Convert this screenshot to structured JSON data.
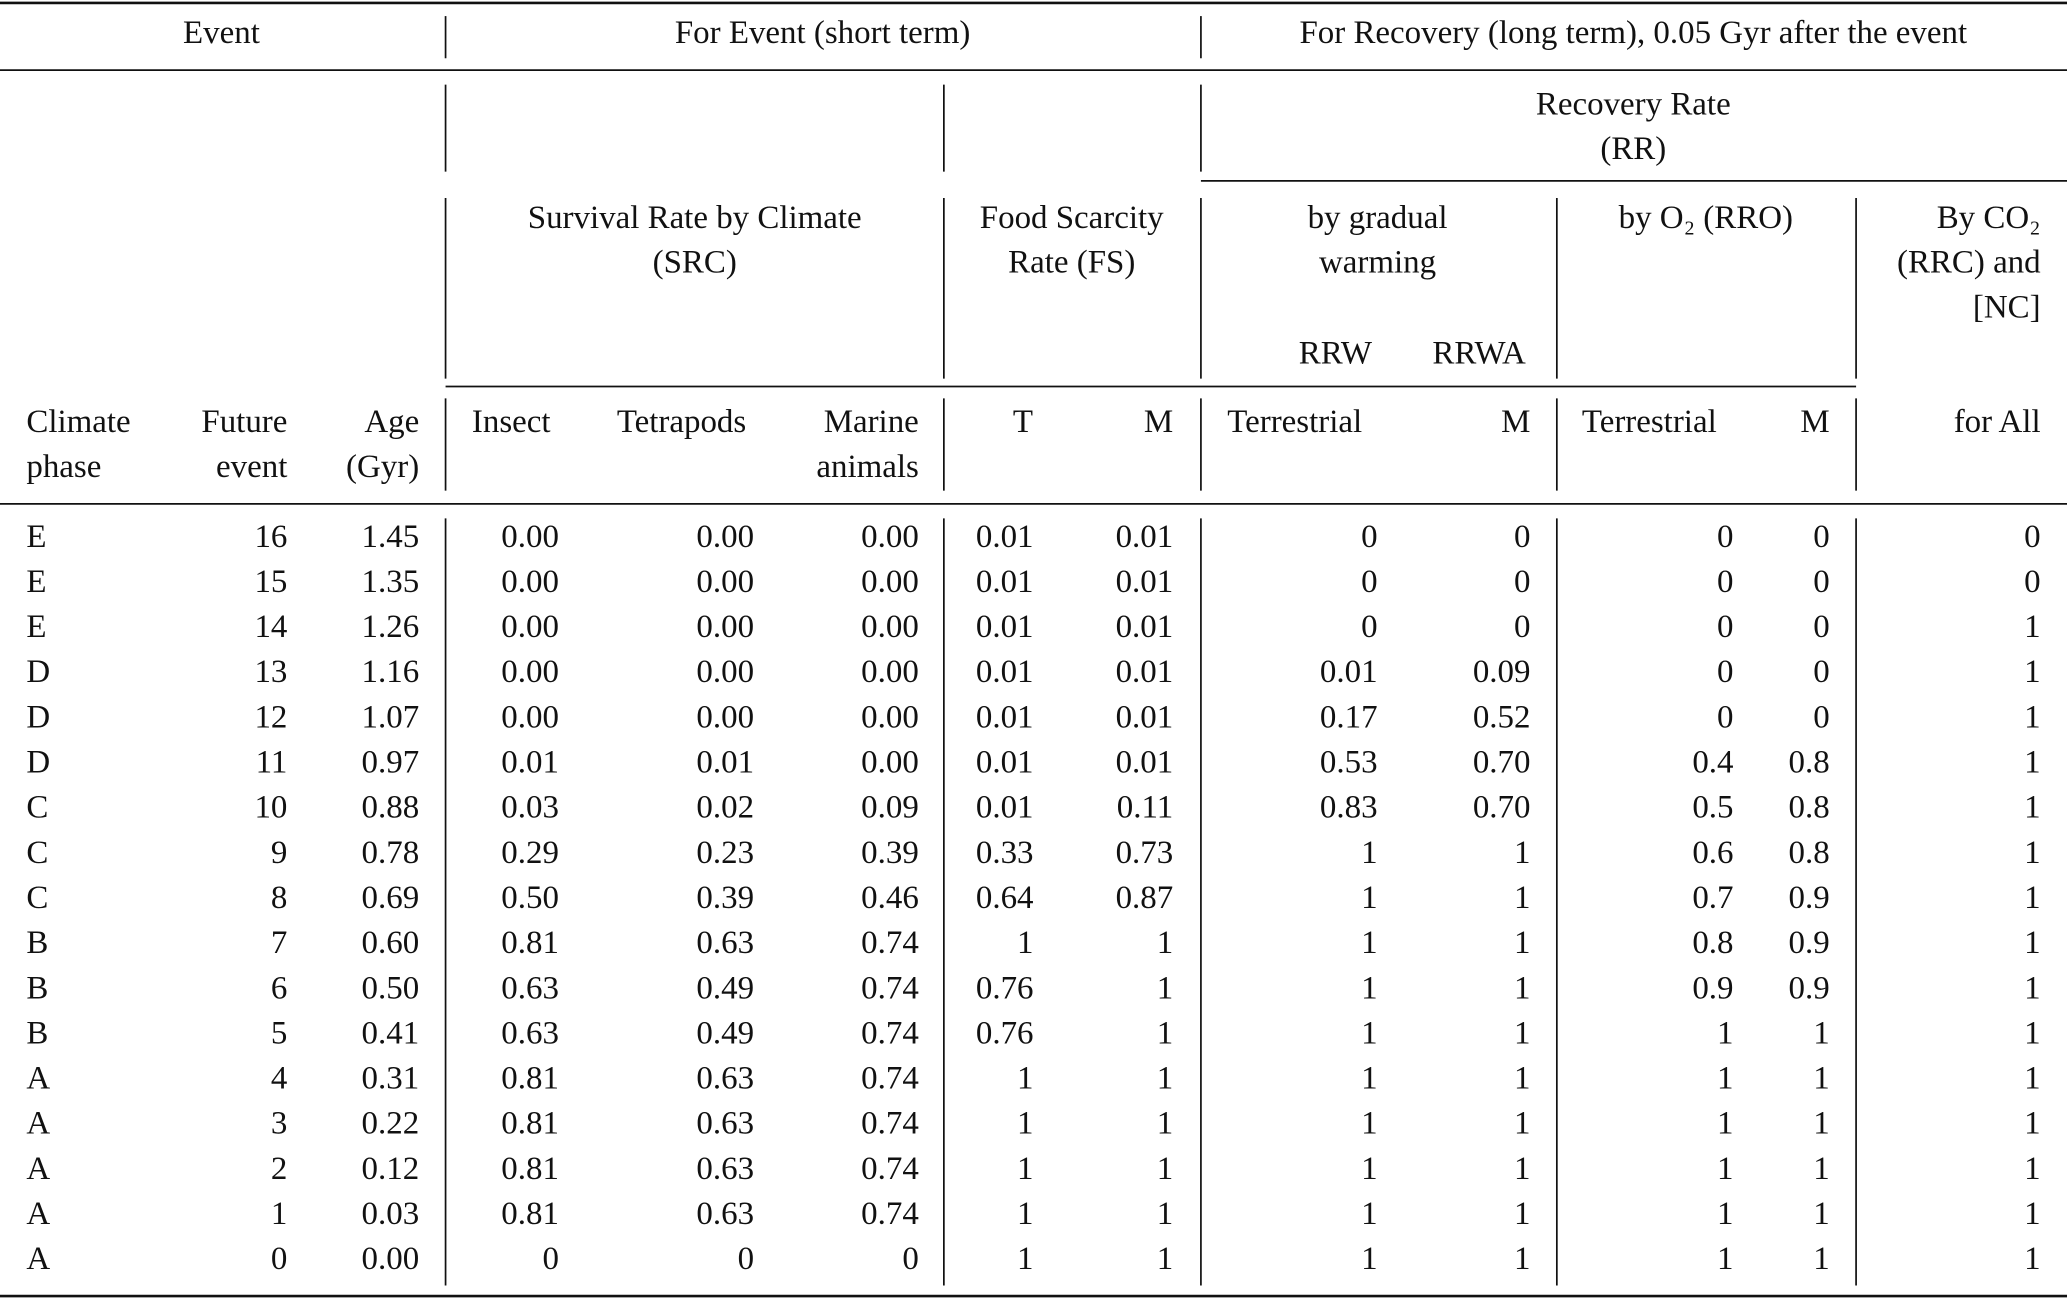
{
  "header": {
    "event": "Event",
    "short_term": "For Event (short term)",
    "long_term": "For Recovery (long term), 0.05 Gyr after the event",
    "recovery_rate": [
      "Recovery Rate",
      "(RR)"
    ],
    "src": [
      "Survival Rate by Climate",
      "(SRC)"
    ],
    "fs": [
      "Food Scarcity",
      "Rate (FS)"
    ],
    "rrw": [
      "by gradual",
      "warming"
    ],
    "rrw_sub": [
      "RRW",
      "RRWA"
    ],
    "rro": "by O₂ (RRO)",
    "rrc": [
      "By CO₂",
      "(RRC) and",
      "[NC]"
    ]
  },
  "columns": [
    [
      "Climate",
      "phase"
    ],
    [
      "Future",
      "event"
    ],
    [
      "Age",
      "(Gyr)"
    ],
    [
      "Insect"
    ],
    [
      "Tetrapods"
    ],
    [
      "Marine",
      "animals"
    ],
    [
      "T"
    ],
    [
      "M"
    ],
    [
      "Terrestrial"
    ],
    [
      "M"
    ],
    [
      "Terrestrial"
    ],
    [
      "M"
    ],
    [
      "for All"
    ]
  ],
  "rows": [
    [
      "E",
      "16",
      "1.45",
      "0.00",
      "0.00",
      "0.00",
      "0.01",
      "0.01",
      "0",
      "0",
      "0",
      "0",
      "0"
    ],
    [
      "E",
      "15",
      "1.35",
      "0.00",
      "0.00",
      "0.00",
      "0.01",
      "0.01",
      "0",
      "0",
      "0",
      "0",
      "0"
    ],
    [
      "E",
      "14",
      "1.26",
      "0.00",
      "0.00",
      "0.00",
      "0.01",
      "0.01",
      "0",
      "0",
      "0",
      "0",
      "1"
    ],
    [
      "D",
      "13",
      "1.16",
      "0.00",
      "0.00",
      "0.00",
      "0.01",
      "0.01",
      "0.01",
      "0.09",
      "0",
      "0",
      "1"
    ],
    [
      "D",
      "12",
      "1.07",
      "0.00",
      "0.00",
      "0.00",
      "0.01",
      "0.01",
      "0.17",
      "0.52",
      "0",
      "0",
      "1"
    ],
    [
      "D",
      "11",
      "0.97",
      "0.01",
      "0.01",
      "0.00",
      "0.01",
      "0.01",
      "0.53",
      "0.70",
      "0.4",
      "0.8",
      "1"
    ],
    [
      "C",
      "10",
      "0.88",
      "0.03",
      "0.02",
      "0.09",
      "0.01",
      "0.11",
      "0.83",
      "0.70",
      "0.5",
      "0.8",
      "1"
    ],
    [
      "C",
      "9",
      "0.78",
      "0.29",
      "0.23",
      "0.39",
      "0.33",
      "0.73",
      "1",
      "1",
      "0.6",
      "0.8",
      "1"
    ],
    [
      "C",
      "8",
      "0.69",
      "0.50",
      "0.39",
      "0.46",
      "0.64",
      "0.87",
      "1",
      "1",
      "0.7",
      "0.9",
      "1"
    ],
    [
      "B",
      "7",
      "0.60",
      "0.81",
      "0.63",
      "0.74",
      "1",
      "1",
      "1",
      "1",
      "0.8",
      "0.9",
      "1"
    ],
    [
      "B",
      "6",
      "0.50",
      "0.63",
      "0.49",
      "0.74",
      "0.76",
      "1",
      "1",
      "1",
      "0.9",
      "0.9",
      "1"
    ],
    [
      "B",
      "5",
      "0.41",
      "0.63",
      "0.49",
      "0.74",
      "0.76",
      "1",
      "1",
      "1",
      "1",
      "1",
      "1"
    ],
    [
      "A",
      "4",
      "0.31",
      "0.81",
      "0.63",
      "0.74",
      "1",
      "1",
      "1",
      "1",
      "1",
      "1",
      "1"
    ],
    [
      "A",
      "3",
      "0.22",
      "0.81",
      "0.63",
      "0.74",
      "1",
      "1",
      "1",
      "1",
      "1",
      "1",
      "1"
    ],
    [
      "A",
      "2",
      "0.12",
      "0.81",
      "0.63",
      "0.74",
      "1",
      "1",
      "1",
      "1",
      "1",
      "1",
      "1"
    ],
    [
      "A",
      "1",
      "0.03",
      "0.81",
      "0.63",
      "0.74",
      "1",
      "1",
      "1",
      "1",
      "1",
      "1",
      "1"
    ],
    [
      "A",
      "0",
      "0.00",
      "0",
      "0",
      "0",
      "1",
      "1",
      "1",
      "1",
      "1",
      "1",
      "1"
    ]
  ]
}
